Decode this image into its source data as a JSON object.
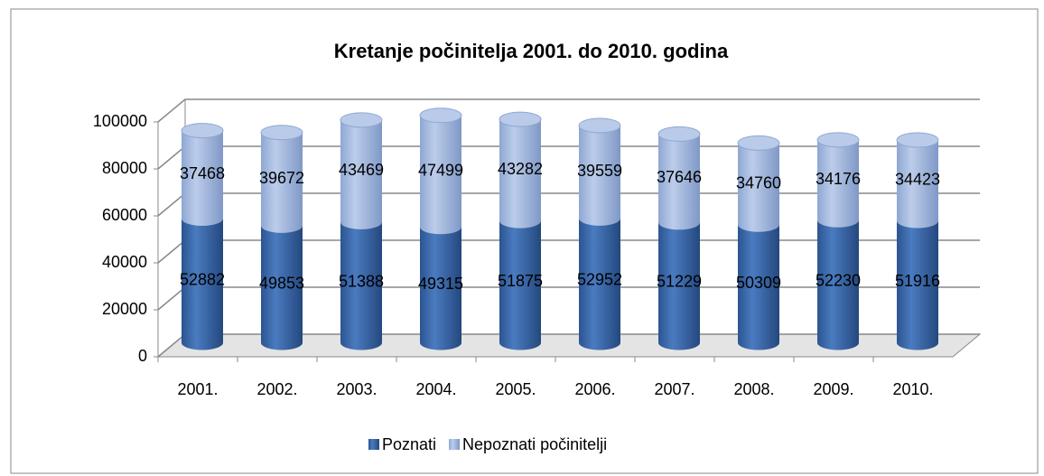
{
  "chart_data": {
    "type": "bar",
    "stacked": true,
    "title": "Kretanje počinitelja  2001. do 2010. godina",
    "categories": [
      "2001.",
      "2002.",
      "2003.",
      "2004.",
      "2005.",
      "2006.",
      "2007.",
      "2008.",
      "2009.",
      "2010."
    ],
    "series": [
      {
        "name": "Poznati",
        "color": "#3f6cab",
        "values": [
          52882,
          49853,
          51388,
          49315,
          51875,
          52952,
          51229,
          50309,
          52230,
          51916
        ]
      },
      {
        "name": "Nepoznati počinitelji",
        "color": "#a7bde2",
        "values": [
          37468,
          39672,
          43469,
          47499,
          43282,
          39559,
          37646,
          34760,
          34176,
          34423
        ]
      }
    ],
    "ylim": [
      0,
      100000
    ],
    "yticks": [
      0,
      20000,
      40000,
      60000,
      80000,
      100000
    ],
    "grid": true,
    "legend": "bottom"
  }
}
